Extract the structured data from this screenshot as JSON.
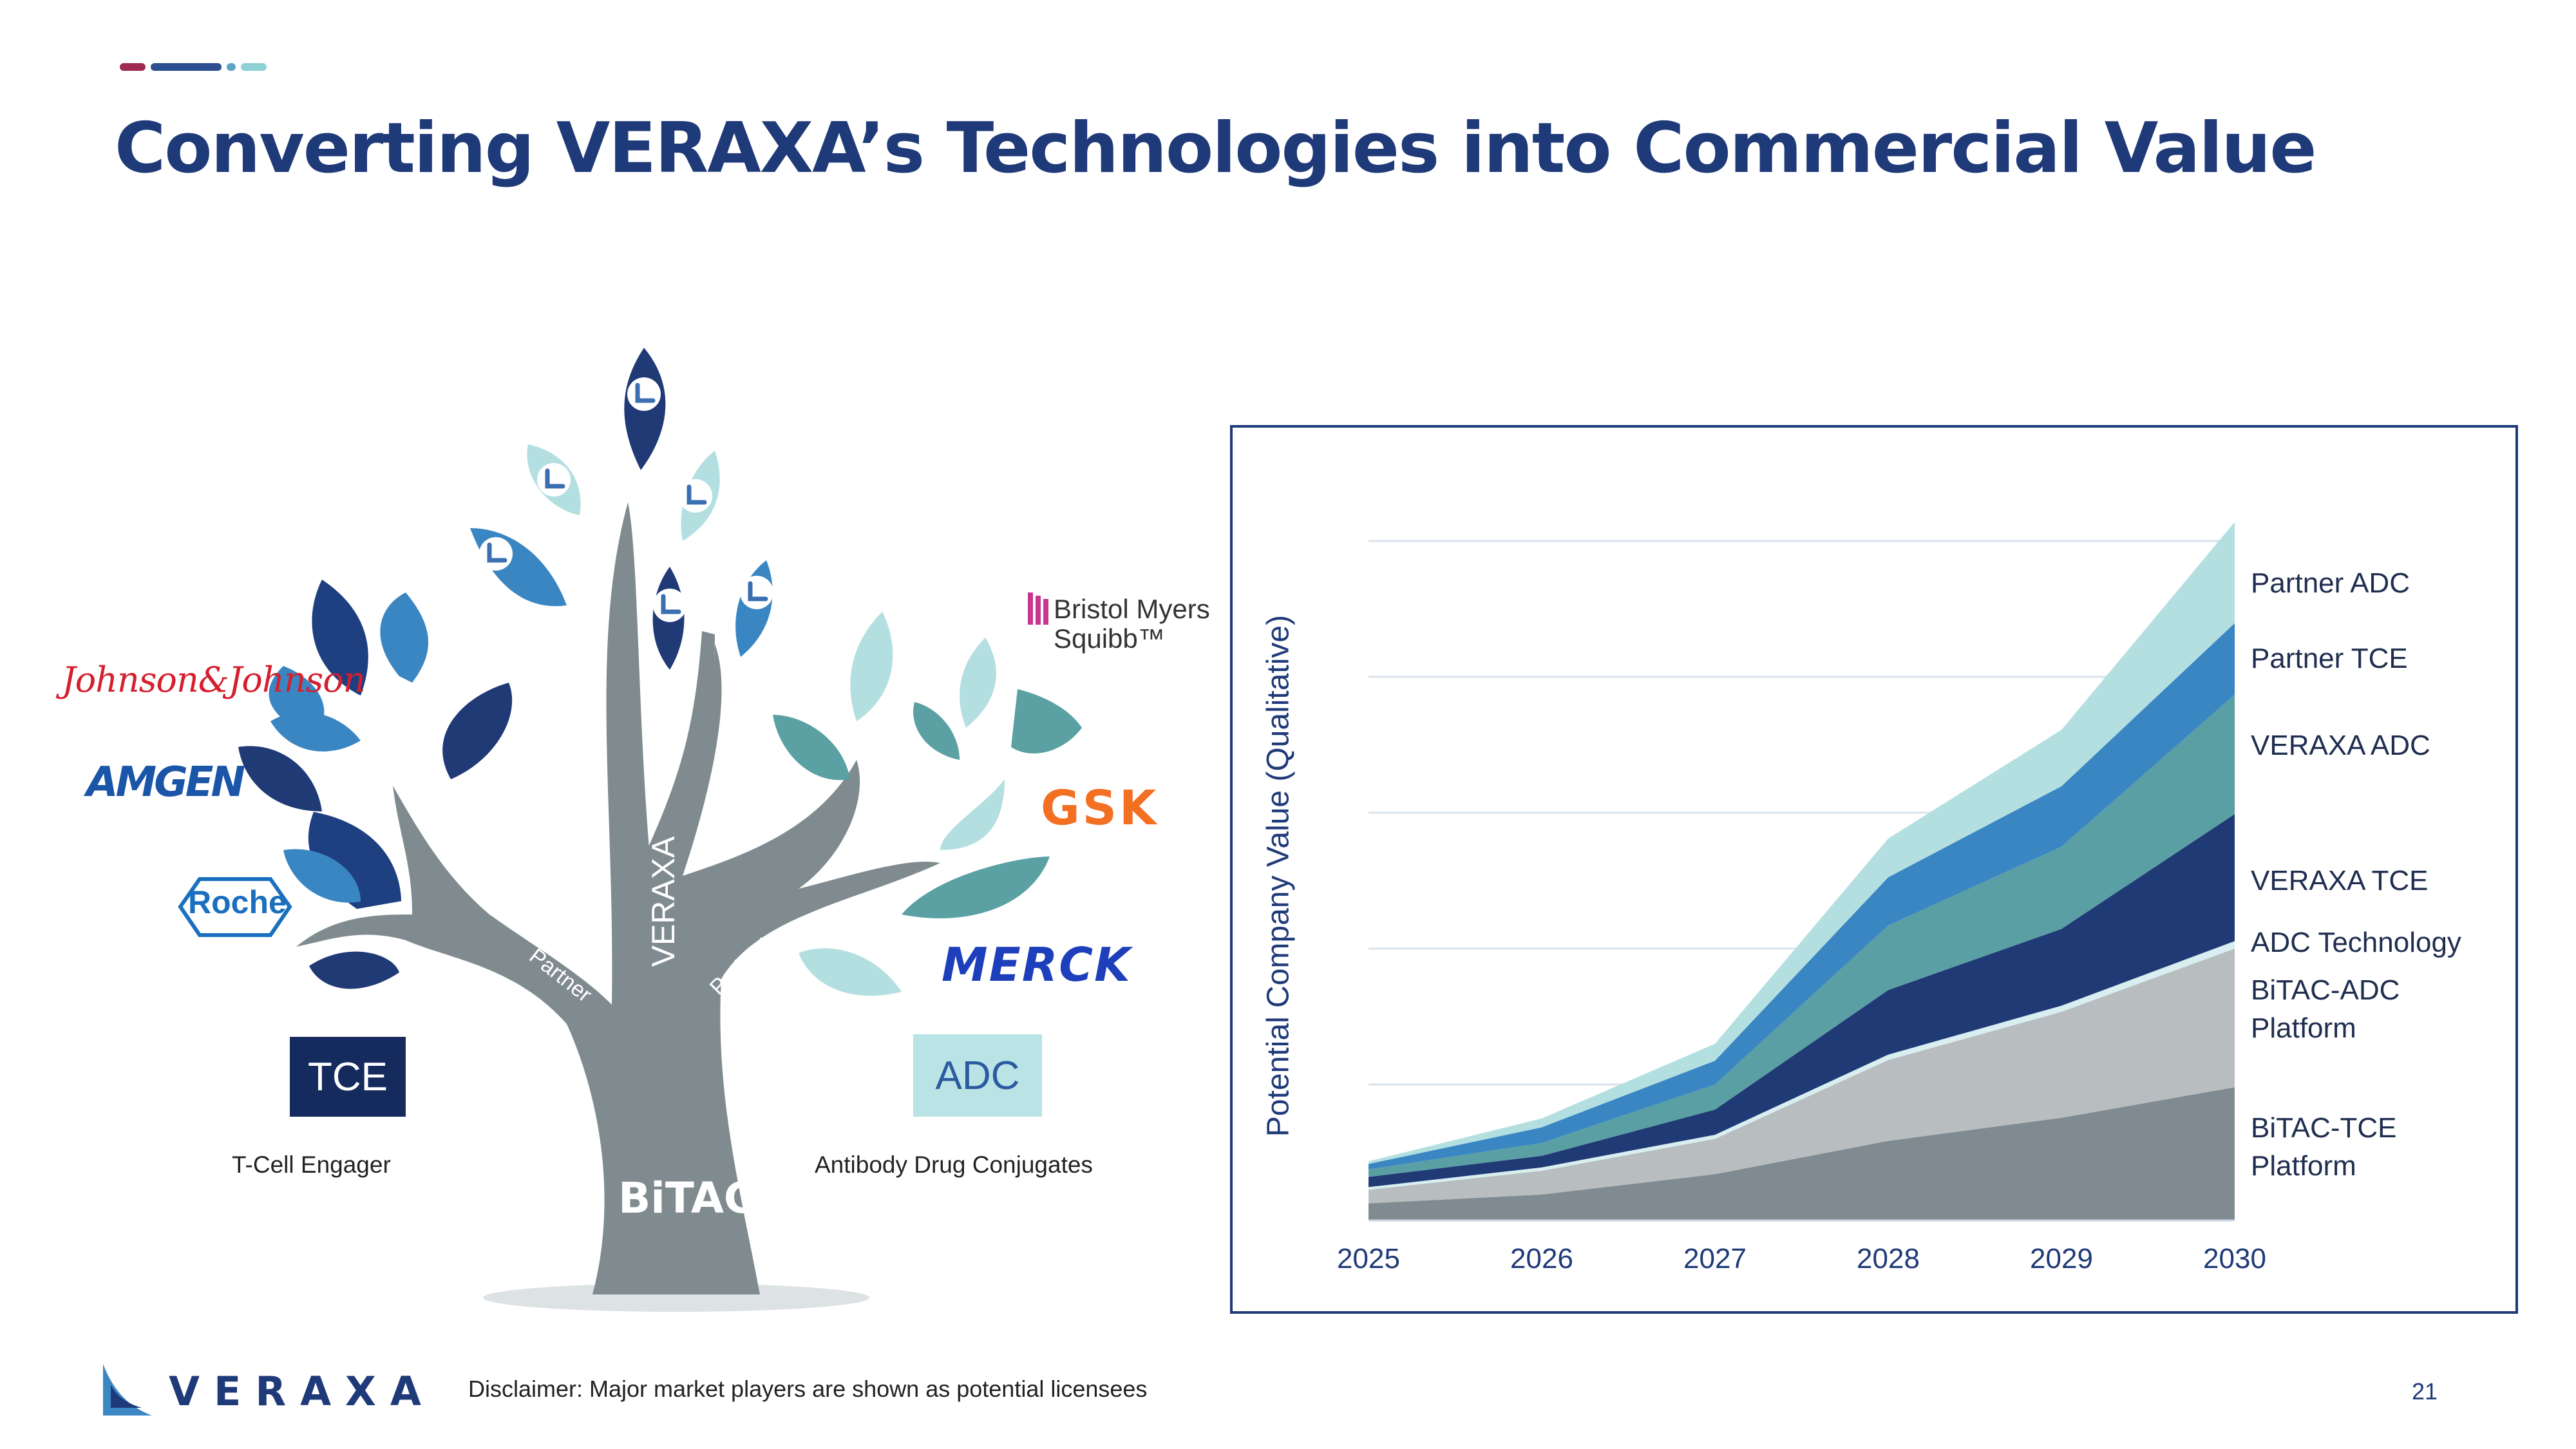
{
  "slide": {
    "title": "Converting VERAXA’s Technologies into Commercial Value",
    "page_number": "21",
    "disclaimer": "Disclaimer: Major market players are shown as potential licensees",
    "brand": "VERAXA",
    "colors": {
      "title": "#1f3a78",
      "navy": "#1f3a78",
      "dark_navy": "#152b5e",
      "blue": "#3b87c4",
      "teal": "#5ba1a4",
      "light_teal": "#b3dde0",
      "gray": "#7f8b90",
      "light_gray": "#b8bdbf"
    }
  },
  "tree": {
    "trunk_label": "BiTAC",
    "center_branch_label": "VERAXA",
    "left_branch_label": "Partner",
    "right_branch_label": "Partner",
    "left_box": {
      "label": "TCE",
      "caption": "T-Cell Engager"
    },
    "right_box": {
      "label": "ADC",
      "caption": "Antibody Drug Conjugates"
    },
    "left_partners": [
      "Johnson&Johnson",
      "AMGEN",
      "Roche"
    ],
    "right_partners": [
      "Bristol Myers Squibb",
      "GSK",
      "MERCK"
    ],
    "logo_text": {
      "jnj": "Johnson&Johnson",
      "amgen": "AMGEN",
      "roche": "Roche",
      "bms_line1": "Bristol Myers",
      "bms_line2": "Squibb™",
      "gsk": "GSK",
      "merck": "MERCK"
    }
  },
  "chart_data": {
    "type": "area",
    "stacked": true,
    "title": "",
    "xlabel": "",
    "ylabel": "Potential Company Value (Qualitative)",
    "x": [
      "2025",
      "2026",
      "2027",
      "2028",
      "2029",
      "2030"
    ],
    "ylim": [
      0,
      100
    ],
    "grid": "horizontal",
    "legend_position": "right",
    "series": [
      {
        "name": "BiTAC-TCE Platform",
        "color": "#7f8b90",
        "values": [
          2.5,
          3.8,
          6.8,
          11.7,
          15.1,
          19.6
        ]
      },
      {
        "name": "BiTAC-ADC Platform",
        "color": "#b8bdbf",
        "values": [
          2.0,
          3.5,
          5.2,
          11.9,
          15.6,
          20.4
        ]
      },
      {
        "name": "ADC Technology",
        "color": "#d8eef0",
        "values": [
          0.4,
          0.5,
          0.6,
          0.8,
          0.9,
          1.1
        ]
      },
      {
        "name": "VERAXA TCE",
        "color": "#203a76",
        "values": [
          1.5,
          1.7,
          3.7,
          9.5,
          11.3,
          18.7
        ]
      },
      {
        "name": "VERAXA ADC",
        "color": "#5a9fa3",
        "values": [
          1.1,
          1.9,
          3.7,
          9.5,
          12.1,
          17.6
        ]
      },
      {
        "name": "Partner TCE",
        "color": "#3a86c3",
        "values": [
          0.8,
          2.3,
          3.5,
          7.1,
          8.9,
          10.5
        ]
      },
      {
        "name": "Partner ADC",
        "color": "#b4dfe1",
        "values": [
          0.4,
          1.3,
          2.5,
          5.7,
          8.3,
          14.9
        ]
      }
    ],
    "legend_labels": {
      "partner_adc": "Partner ADC",
      "partner_tce": "Partner TCE",
      "veraxa_adc": "VERAXA ADC",
      "veraxa_tce": "VERAXA TCE",
      "adc_technology": "ADC Technology",
      "bitac_adc_1": "BiTAC-ADC",
      "bitac_adc_2": "Platform",
      "bitac_tce_1": "BiTAC-TCE",
      "bitac_tce_2": "Platform"
    }
  }
}
